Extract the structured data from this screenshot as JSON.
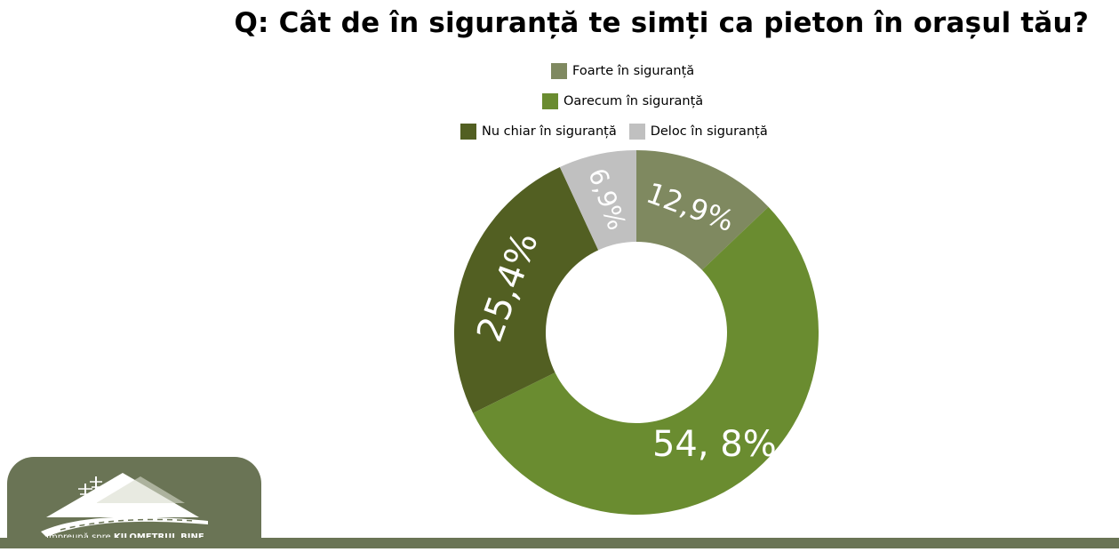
{
  "title": "Q: Cât de în siguranță te simți ca pieton în orașul tău?",
  "colors": {
    "foarte": "#7f8960",
    "oarecum": "#6a8c30",
    "nu_chiar": "#525f22",
    "deloc": "#c0c0c0",
    "brand": "#6a7455"
  },
  "chart_data": {
    "type": "pie",
    "subtype": "donut",
    "legend_placement": "top",
    "slices": [
      {
        "name": "Foarte în siguranță",
        "value": 12.9,
        "label": "12,9%",
        "color": "#7f8960"
      },
      {
        "name": "Oarecum în siguranță",
        "value": 54.8,
        "label": "54, 8%",
        "color": "#6a8c30"
      },
      {
        "name": "Nu chiar în siguranță",
        "value": 25.4,
        "label": "25,4%",
        "color": "#525f22"
      },
      {
        "name": "Deloc în siguranță",
        "value": 6.9,
        "label": "6,9%",
        "color": "#c0c0c0"
      }
    ]
  },
  "logo": {
    "text_prefix": "Împreună spre ",
    "text_bold": "KILOMETRUL BINE"
  }
}
